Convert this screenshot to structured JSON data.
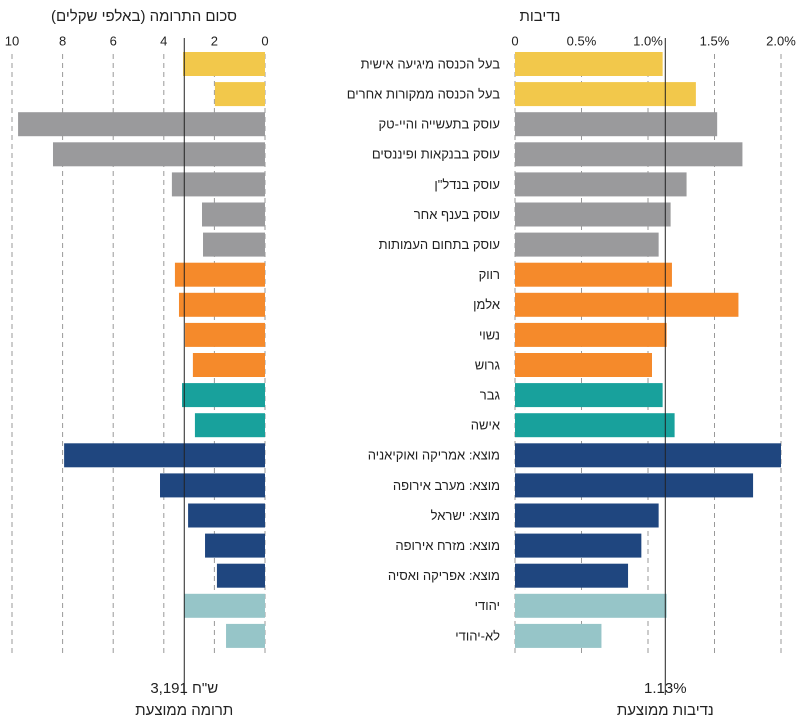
{
  "chart_data": {
    "type": "butterfly",
    "categories": [
      "בעל הכנסה מיגיעה אישית",
      "בעל הכנסה ממקורות אחרים",
      "עוסק בתעשייה והיי-טק",
      "עוסק בבנקאות ופיננסים",
      "עוסק בנדל\"ן",
      "עוסק בענף אחר",
      "עוסק בתחום העמותות",
      "רווק",
      "אלמן",
      "נשוי",
      "גרוש",
      "גבר",
      "אישה",
      "מוצא: אמריקה ואוקיאניה",
      "מוצא: מערב אירופה",
      "מוצא: ישראל",
      "מוצא: מזרח אירופה",
      "מוצא: אפריקה ואסיה",
      "יהודי",
      "לא-יהודי"
    ],
    "colors": [
      "#f2c84b",
      "#f2c84b",
      "#9a9a9c",
      "#9a9a9c",
      "#9a9a9c",
      "#9a9a9c",
      "#9a9a9c",
      "#f58a2b",
      "#f58a2b",
      "#f58a2b",
      "#f58a2b",
      "#18a19c",
      "#18a19c",
      "#1f467f",
      "#1f467f",
      "#1f467f",
      "#1f467f",
      "#1f467f",
      "#96c5c8",
      "#96c5c8"
    ],
    "panels": [
      {
        "title": "סכום התרומה (באלפי שקלים)",
        "values": [
          3.24,
          1.98,
          9.76,
          8.38,
          3.68,
          2.49,
          2.45,
          3.56,
          3.4,
          3.16,
          2.85,
          3.28,
          2.77,
          7.94,
          4.15,
          3.04,
          2.37,
          1.9,
          3.2,
          1.54
        ],
        "xlim": [
          10,
          0
        ],
        "xticks": [
          0,
          2,
          4,
          6,
          8,
          10
        ],
        "average": {
          "value": 3.191,
          "value_label": "3,191 ש\"ח",
          "label": "תרומה ממוצעת"
        }
      },
      {
        "title": "נדיבות",
        "values": [
          1.11,
          1.36,
          1.52,
          1.71,
          1.29,
          1.17,
          1.08,
          1.18,
          1.68,
          1.14,
          1.03,
          1.11,
          1.2,
          2.0,
          1.79,
          1.08,
          0.95,
          0.85,
          1.14,
          0.65
        ],
        "xlim": [
          0,
          2
        ],
        "xticks": [
          0,
          {
            "value": 0.5,
            "label": "0.5%"
          },
          {
            "value": 1,
            "label": "1.0%"
          },
          {
            "value": 1.5,
            "label": "1.5%"
          },
          {
            "value": 2,
            "label": "2.0%"
          }
        ],
        "average": {
          "value": 1.13,
          "value_label": "1.13%",
          "label": "נדיבות ממוצעת"
        }
      }
    ],
    "grid": true
  }
}
